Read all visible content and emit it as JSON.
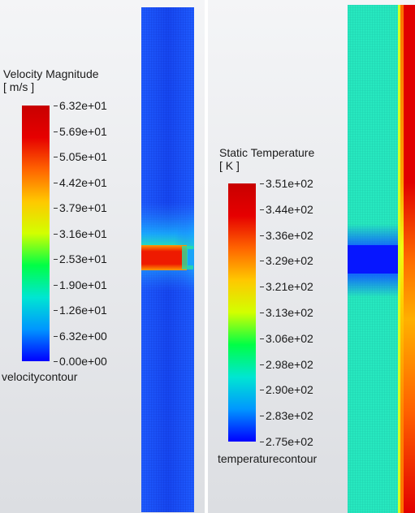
{
  "velocity_panel": {
    "legend": {
      "title": "Velocity Magnitude",
      "unit": "[ m/s ]",
      "ticks": [
        "6.32e+01",
        "5.69e+01",
        "5.05e+01",
        "4.42e+01",
        "3.79e+01",
        "3.16e+01",
        "2.53e+01",
        "1.90e+01",
        "1.26e+01",
        "6.32e+00",
        "0.00e+00"
      ],
      "contour_name": "velocitycontour",
      "colormap": [
        "#0000ff",
        "#0096ff",
        "#00e6d2",
        "#00ff46",
        "#d2ff00",
        "#ffc800",
        "#ff6400",
        "#e60000",
        "#c80000"
      ]
    }
  },
  "temperature_panel": {
    "legend": {
      "title": "Static Temperature",
      "unit": "[ K ]",
      "ticks": [
        "3.51e+02",
        "3.44e+02",
        "3.36e+02",
        "3.29e+02",
        "3.21e+02",
        "3.13e+02",
        "3.06e+02",
        "2.98e+02",
        "2.90e+02",
        "2.83e+02",
        "2.75e+02"
      ],
      "contour_name": "temperaturecontour",
      "colormap": [
        "#0000ff",
        "#0096ff",
        "#00e6d2",
        "#00ff46",
        "#d2ff00",
        "#ffc800",
        "#ff6400",
        "#e60000",
        "#c80000"
      ]
    }
  }
}
